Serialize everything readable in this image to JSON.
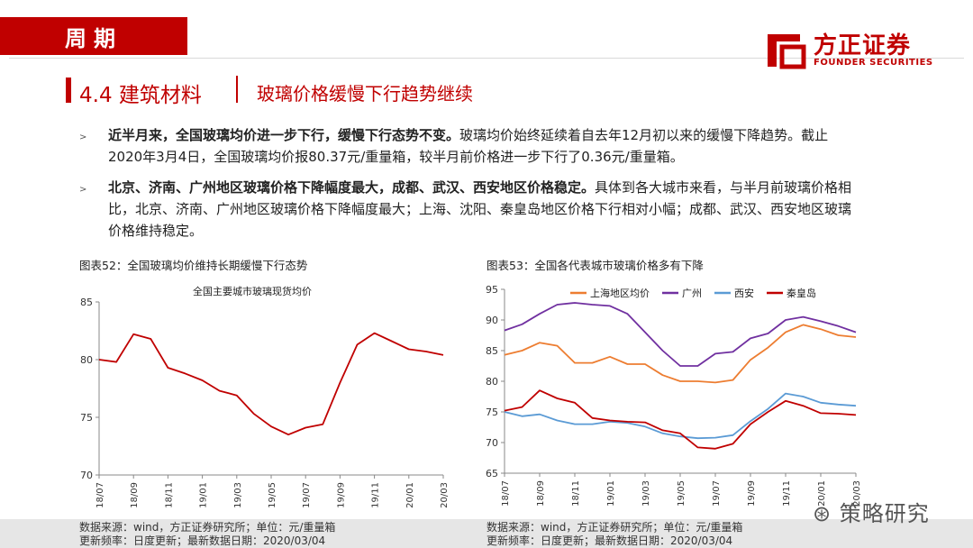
{
  "header": {
    "tag": "周期",
    "logo_cn": "方正证券",
    "logo_en": "FOUNDER SECURITIES",
    "brand_color": "#c00000"
  },
  "section": {
    "title": "4.4 建筑材料",
    "subtitle": "玻璃价格缓慢下行趋势继续"
  },
  "bullets": [
    {
      "bold": "近半月来，全国玻璃均价进一步下行，缓慢下行态势不变。",
      "text": "玻璃均价始终延续着自去年12月初以来的缓慢下降趋势。截止2020年3月4日，全国玻璃均价报80.37元/重量箱，较半月前价格进一步下行了0.36元/重量箱。"
    },
    {
      "bold": "北京、济南、广州地区玻璃价格下降幅度最大，成都、武汉、西安地区价格稳定。",
      "text": "具体到各大城市来看，与半月前玻璃价格相比，北京、济南、广州地区玻璃价格下降幅度最大；上海、沈阳、秦皇岛地区价格下行相对小幅；成都、武汉、西安地区玻璃价格维持稳定。"
    }
  ],
  "figures": [
    {
      "caption": "图表52：全国玻璃均价维持长期缓慢下行态势",
      "source": "数据来源：wind，方正证券研究所；单位：元/重量箱",
      "update": "更新频率：日度更新；最新数据日期：2020/03/04"
    },
    {
      "caption": "图表53：全国各代表城市玻璃价格多有下降",
      "source": "数据来源：wind，方正证券研究所；单位：元/重量箱",
      "update": "更新频率：日度更新；最新数据日期：2020/03/04"
    }
  ],
  "watermark": "策略研究",
  "chart_data": [
    {
      "type": "line",
      "title": "全国主要城市玻璃现货均价",
      "x": [
        "18/07",
        "18/08",
        "18/09",
        "18/10",
        "18/11",
        "18/12",
        "19/01",
        "19/02",
        "19/03",
        "19/04",
        "19/05",
        "19/06",
        "19/07",
        "19/08",
        "19/09",
        "19/10",
        "19/11",
        "19/12",
        "20/01",
        "20/02",
        "20/03"
      ],
      "x_ticks": [
        "18/07",
        "18/09",
        "18/11",
        "19/01",
        "19/03",
        "19/05",
        "19/07",
        "19/09",
        "19/11",
        "20/01",
        "20/03"
      ],
      "ylim": [
        70,
        85
      ],
      "y_ticks": [
        70,
        75,
        80,
        85
      ],
      "grid": false,
      "legend": "none",
      "series": [
        {
          "color": "#c00000",
          "values": [
            80.0,
            79.8,
            82.2,
            81.8,
            79.3,
            78.8,
            78.2,
            77.3,
            76.9,
            75.3,
            74.2,
            73.5,
            74.1,
            74.4,
            78.0,
            81.3,
            82.3,
            81.6,
            80.9,
            80.7,
            80.4
          ]
        }
      ]
    },
    {
      "type": "line",
      "x": [
        "18/07",
        "18/08",
        "18/09",
        "18/10",
        "18/11",
        "18/12",
        "19/01",
        "19/02",
        "19/03",
        "19/04",
        "19/05",
        "19/06",
        "19/07",
        "19/08",
        "19/09",
        "19/10",
        "19/11",
        "19/12",
        "20/01",
        "20/02",
        "20/03"
      ],
      "x_ticks": [
        "18/07",
        "18/09",
        "18/11",
        "19/01",
        "19/03",
        "19/05",
        "19/07",
        "19/09",
        "19/11",
        "20/01",
        "20/03"
      ],
      "ylim": [
        65,
        95
      ],
      "y_ticks": [
        65,
        70,
        75,
        80,
        85,
        90,
        95
      ],
      "grid": false,
      "legend": "top",
      "series": [
        {
          "name": "上海地区均价",
          "color": "#ed7d31",
          "values": [
            84.3,
            85.0,
            86.3,
            85.8,
            83.0,
            83.0,
            84.0,
            82.8,
            82.8,
            81.0,
            80.0,
            80.0,
            79.8,
            80.2,
            83.5,
            85.5,
            88.0,
            89.2,
            88.5,
            87.5,
            87.2
          ]
        },
        {
          "name": "广州",
          "color": "#7030a0",
          "values": [
            88.3,
            89.3,
            91.0,
            92.5,
            92.8,
            92.5,
            92.3,
            91.0,
            88.0,
            85.0,
            82.5,
            82.5,
            84.5,
            84.8,
            87.0,
            87.8,
            90.0,
            90.5,
            89.8,
            89.0,
            88.0
          ]
        },
        {
          "name": "西安",
          "color": "#5b9bd5",
          "values": [
            75.0,
            74.3,
            74.6,
            73.6,
            73.0,
            73.0,
            73.4,
            73.2,
            72.6,
            71.5,
            71.0,
            70.7,
            70.8,
            71.2,
            73.5,
            75.5,
            78.0,
            77.5,
            76.5,
            76.2,
            76.0
          ]
        },
        {
          "name": "秦皇岛",
          "color": "#c00000",
          "values": [
            75.2,
            75.8,
            78.5,
            77.2,
            76.5,
            74.0,
            73.6,
            73.4,
            73.3,
            72.0,
            71.5,
            69.2,
            69.0,
            69.8,
            73.0,
            75.0,
            76.8,
            76.0,
            74.8,
            74.7,
            74.5
          ]
        }
      ]
    }
  ]
}
